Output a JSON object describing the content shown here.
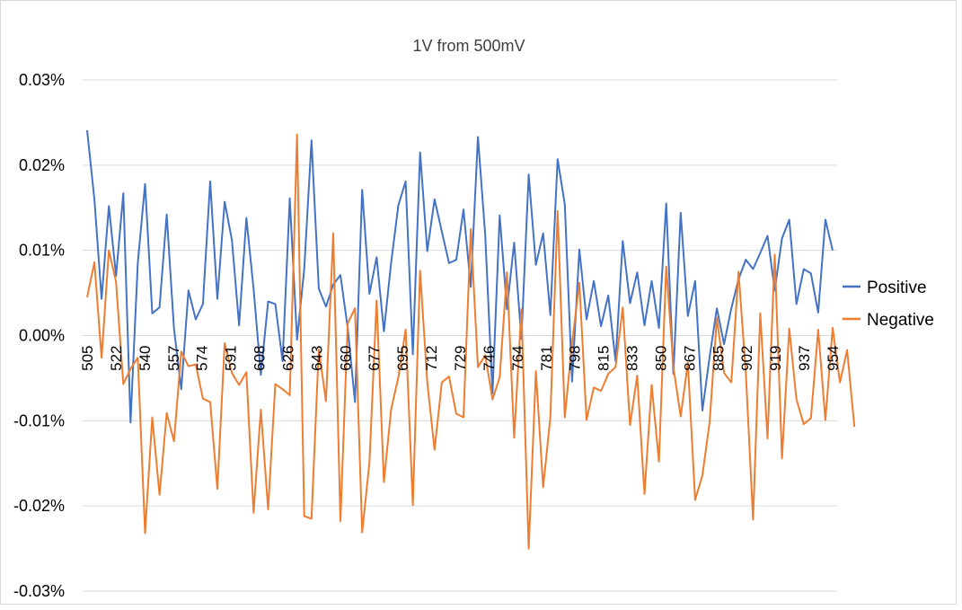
{
  "chart_data": {
    "type": "line",
    "title": "1V from 500mV",
    "xlabel": "",
    "ylabel": "",
    "ylim": [
      -0.03,
      0.03
    ],
    "ytick_values": [
      0.03,
      0.02,
      0.01,
      0.0,
      -0.01,
      -0.02,
      -0.03
    ],
    "ytick_labels": [
      "0.03%",
      "0.02%",
      "0.01%",
      "0.00%",
      "-0.01%",
      "-0.02%",
      "-0.03%"
    ],
    "x_start": 505,
    "x_end": 954,
    "x_tick_labels": [
      "505",
      "522",
      "540",
      "557",
      "574",
      "591",
      "608",
      "626",
      "643",
      "660",
      "677",
      "695",
      "712",
      "729",
      "746",
      "764",
      "781",
      "798",
      "815",
      "833",
      "850",
      "867",
      "885",
      "902",
      "919",
      "937",
      "954"
    ],
    "grid": "horizontal",
    "legend_position": "right",
    "series": [
      {
        "name": "Positive",
        "color": "#4472c4",
        "values": [
          0.0241,
          0.016,
          0.0043,
          0.0152,
          0.007,
          0.0167,
          -0.0102,
          0.0085,
          0.0178,
          0.0026,
          0.0033,
          0.0142,
          0.0008,
          -0.0063,
          0.0053,
          0.0019,
          0.0037,
          0.0181,
          0.0043,
          0.0157,
          0.0112,
          0.0012,
          0.0138,
          0.0055,
          -0.0046,
          0.004,
          0.0037,
          -0.003,
          0.0161,
          -0.0005,
          0.0078,
          0.0229,
          0.0055,
          0.0034,
          0.006,
          0.0071,
          0.0009,
          -0.0078,
          0.0171,
          0.0049,
          0.0092,
          0.0005,
          0.0085,
          0.0153,
          0.0181,
          -0.0022,
          0.0215,
          0.0099,
          0.016,
          0.0122,
          0.0085,
          0.0089,
          0.0148,
          0.0057,
          0.0233,
          0.0118,
          -0.0068,
          0.0141,
          0.0031,
          0.0109,
          -0.0004,
          0.0189,
          0.0083,
          0.012,
          0.0024,
          0.0207,
          0.0154,
          -0.0054,
          0.0101,
          0.0019,
          0.0064,
          0.0011,
          0.0047,
          -0.003,
          0.0111,
          0.0038,
          0.0074,
          0.0012,
          0.0064,
          0.0009,
          0.0155,
          -0.0045,
          0.0144,
          0.0023,
          0.0064,
          -0.0088,
          -0.0025,
          0.0032,
          -0.001,
          0.0032,
          0.0066,
          0.0089,
          0.0078,
          0.0097,
          0.0117,
          0.0053,
          0.0114,
          0.0136,
          0.0037,
          0.0078,
          0.0073,
          0.0027,
          0.0136,
          0.01
        ]
      },
      {
        "name": "Negative",
        "color": "#ed7d31",
        "values": [
          0.0045,
          0.0086,
          -0.0026,
          0.01,
          0.0063,
          -0.0057,
          -0.0039,
          -0.0026,
          -0.0232,
          -0.0096,
          -0.0187,
          -0.0091,
          -0.0124,
          -0.0019,
          -0.0036,
          -0.0034,
          -0.0074,
          -0.0078,
          -0.018,
          -0.0009,
          -0.0044,
          -0.0058,
          -0.0043,
          -0.0208,
          -0.0087,
          -0.0204,
          -0.0057,
          -0.0063,
          -0.007,
          0.0236,
          -0.0212,
          -0.0215,
          -0.0016,
          -0.0077,
          0.012,
          -0.0218,
          0.0014,
          0.0032,
          -0.0231,
          -0.0149,
          0.0041,
          -0.0172,
          -0.0087,
          -0.0049,
          0.0007,
          -0.0199,
          0.0076,
          -0.0055,
          -0.0134,
          -0.0055,
          -0.0048,
          -0.0092,
          -0.0096,
          0.0125,
          -0.0037,
          -0.0023,
          -0.0075,
          -0.0049,
          0.0074,
          -0.012,
          0.0031,
          -0.025,
          -0.0042,
          -0.0178,
          -0.0096,
          0.0146,
          -0.0096,
          -0.0009,
          0.0062,
          -0.0099,
          -0.0061,
          -0.0065,
          -0.0045,
          -0.0037,
          0.0033,
          -0.0105,
          -0.0047,
          -0.0186,
          -0.0058,
          -0.0148,
          0.0081,
          -0.0037,
          -0.0095,
          -0.0032,
          -0.0193,
          -0.0164,
          -0.0102,
          0.0021,
          -0.0044,
          -0.0055,
          0.0075,
          -0.0043,
          -0.0216,
          0.0026,
          -0.0121,
          0.0095,
          -0.0144,
          0.0008,
          -0.0075,
          -0.0104,
          -0.0097,
          0.0007,
          -0.0099,
          0.0009,
          -0.0055,
          -0.0017,
          -0.0107
        ]
      }
    ]
  }
}
